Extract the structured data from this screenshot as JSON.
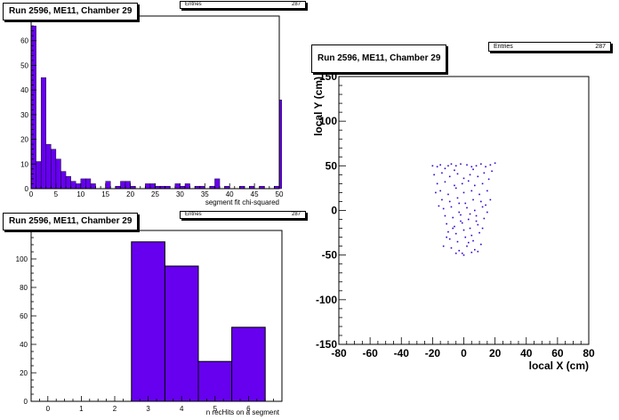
{
  "colors": {
    "fill": "#6600ee",
    "point": "#3300cc",
    "frame": "#000000",
    "background": "#ffffff"
  },
  "chart_data": [
    {
      "type": "bar",
      "title": "Run 2596, ME11, Chamber 29",
      "xlabel": "segment fit chi-squared",
      "ylabel": "",
      "stats": {
        "label": "Entries",
        "value": "287"
      },
      "xlim": [
        0,
        50
      ],
      "ylim": [
        0,
        70
      ],
      "x_ticks": [
        "0",
        "5",
        "10",
        "15",
        "20",
        "25",
        "30",
        "35",
        "40",
        "45",
        "50"
      ],
      "y_ticks": [
        "0",
        "10",
        "20",
        "30",
        "40",
        "50",
        "60"
      ],
      "bin_width": 1,
      "values": [
        66,
        11,
        45,
        18,
        16,
        12,
        7,
        5,
        3,
        2,
        4,
        4,
        2,
        0,
        0,
        3,
        0,
        1,
        3,
        3,
        1,
        0,
        0,
        2,
        2,
        1,
        1,
        1,
        0,
        2,
        1,
        2,
        0,
        1,
        1,
        0,
        1,
        4,
        0,
        1,
        0,
        0,
        1,
        0,
        1,
        0,
        1,
        0,
        0,
        1,
        36
      ]
    },
    {
      "type": "bar",
      "title": "Run 2596, ME11, Chamber 29",
      "xlabel": "n recHits on a segment",
      "ylabel": "",
      "stats": {
        "label": "Entries",
        "value": "287"
      },
      "xlim": [
        -0.5,
        7.0
      ],
      "ylim": [
        0,
        120
      ],
      "x_ticks": [
        "0",
        "1",
        "2",
        "3",
        "4",
        "5",
        "6"
      ],
      "y_ticks": [
        "0",
        "20",
        "40",
        "60",
        "80",
        "100"
      ],
      "bins": [
        {
          "x": 3,
          "value": 112
        },
        {
          "x": 4,
          "value": 95
        },
        {
          "x": 5,
          "value": 28
        },
        {
          "x": 6,
          "value": 52
        }
      ]
    },
    {
      "type": "scatter",
      "title": "Run 2596, ME11, Chamber 29",
      "xlabel": "local X (cm)",
      "ylabel": "local Y (cm)",
      "stats": {
        "label": "Entries",
        "value": "287"
      },
      "xlim": [
        -80,
        80
      ],
      "ylim": [
        -150,
        150
      ],
      "x_ticks": [
        "-80",
        "-60",
        "-40",
        "-20",
        "0",
        "20",
        "40",
        "60",
        "80"
      ],
      "y_ticks": [
        "-150",
        "-100",
        "-50",
        "0",
        "50",
        "100",
        "150"
      ],
      "points": [
        [
          -20,
          50
        ],
        [
          -17,
          49
        ],
        [
          -15,
          51
        ],
        [
          -12,
          47
        ],
        [
          -10,
          50
        ],
        [
          -8,
          52
        ],
        [
          -5,
          50
        ],
        [
          -2,
          52
        ],
        [
          2,
          51
        ],
        [
          5,
          49
        ],
        [
          8,
          50
        ],
        [
          11,
          52
        ],
        [
          14,
          49
        ],
        [
          17,
          51
        ],
        [
          20,
          53
        ],
        [
          -19,
          40
        ],
        [
          -14,
          42
        ],
        [
          -9,
          38
        ],
        [
          -4,
          41
        ],
        [
          0,
          36
        ],
        [
          4,
          40
        ],
        [
          9,
          38
        ],
        [
          13,
          42
        ],
        [
          18,
          44
        ],
        [
          -17,
          30
        ],
        [
          -12,
          32
        ],
        [
          -6,
          28
        ],
        [
          -1,
          30
        ],
        [
          3,
          33
        ],
        [
          7,
          28
        ],
        [
          12,
          30
        ],
        [
          16,
          35
        ],
        [
          -15,
          22
        ],
        [
          -10,
          18
        ],
        [
          -5,
          25
        ],
        [
          0,
          20
        ],
        [
          5,
          22
        ],
        [
          10,
          18
        ],
        [
          15,
          22
        ],
        [
          -14,
          12
        ],
        [
          -9,
          10
        ],
        [
          -4,
          14
        ],
        [
          1,
          8
        ],
        [
          6,
          12
        ],
        [
          11,
          10
        ],
        [
          14,
          6
        ],
        [
          -13,
          2
        ],
        [
          -8,
          4
        ],
        [
          -3,
          -2
        ],
        [
          2,
          3
        ],
        [
          7,
          0
        ],
        [
          12,
          4
        ],
        [
          -12,
          -6
        ],
        [
          -7,
          -8
        ],
        [
          -2,
          -5
        ],
        [
          3,
          -10
        ],
        [
          8,
          -6
        ],
        [
          13,
          -9
        ],
        [
          -11,
          -15
        ],
        [
          -6,
          -18
        ],
        [
          -1,
          -14
        ],
        [
          4,
          -20
        ],
        [
          9,
          -16
        ],
        [
          -10,
          -24
        ],
        [
          -5,
          -26
        ],
        [
          0,
          -22
        ],
        [
          5,
          -28
        ],
        [
          10,
          -25
        ],
        [
          -9,
          -32
        ],
        [
          -4,
          -35
        ],
        [
          1,
          -30
        ],
        [
          6,
          -34
        ],
        [
          11,
          -38
        ],
        [
          -8,
          -42
        ],
        [
          -3,
          -45
        ],
        [
          2,
          -40
        ],
        [
          7,
          -44
        ],
        [
          -5,
          -48
        ],
        [
          0,
          -50
        ],
        [
          5,
          -47
        ],
        [
          -13,
          -40
        ],
        [
          -7,
          -20
        ],
        [
          3,
          -36
        ],
        [
          -2,
          -12
        ],
        [
          8,
          -12
        ],
        [
          -16,
          5
        ],
        [
          15,
          -2
        ],
        [
          -18,
          20
        ],
        [
          17,
          12
        ],
        [
          -1,
          -48
        ],
        [
          9,
          -46
        ],
        [
          -11,
          -30
        ],
        [
          12,
          -20
        ],
        [
          -6,
          45
        ],
        [
          6,
          46
        ],
        [
          -3,
          8
        ],
        [
          4,
          -4
        ]
      ]
    }
  ]
}
